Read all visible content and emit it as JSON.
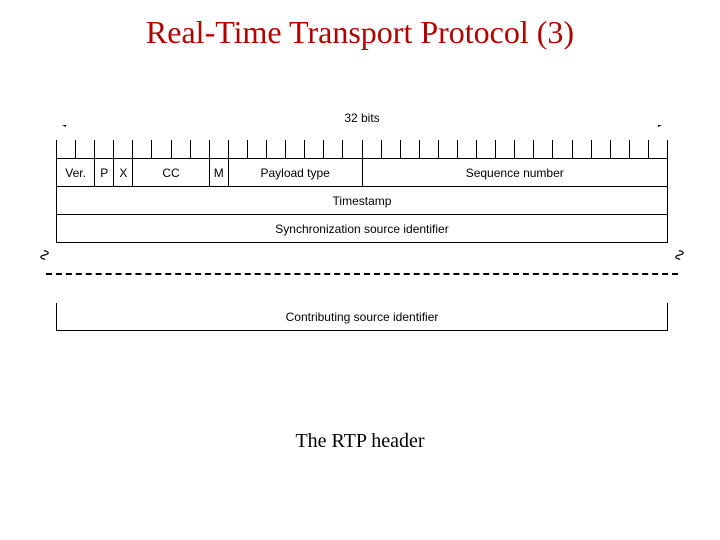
{
  "title": {
    "text": "Real-Time Transport Protocol (3)",
    "fontsize": 32,
    "color": "#b00000",
    "font_family": "Times New Roman"
  },
  "diagram": {
    "width_label": "32 bits",
    "label_font_family": "Arial",
    "label_fontsize": 12,
    "bit_tick_count": 32,
    "row1_fields": [
      {
        "label": "Ver.",
        "bits": 2
      },
      {
        "label": "P",
        "bits": 1
      },
      {
        "label": "X",
        "bits": 1
      },
      {
        "label": "CC",
        "bits": 4
      },
      {
        "label": "M",
        "bits": 1
      },
      {
        "label": "Payload type",
        "bits": 7
      },
      {
        "label": "Sequence number",
        "bits": 16
      }
    ],
    "row2_label": "Timestamp",
    "row3_label": "Synchronization source identifier",
    "row4_label": "Contributing source identifier",
    "border_color": "#000000",
    "background_color": "#ffffff"
  },
  "caption": {
    "text": "The RTP header",
    "fontsize": 20,
    "color": "#000000",
    "font_family": "Times New Roman"
  }
}
